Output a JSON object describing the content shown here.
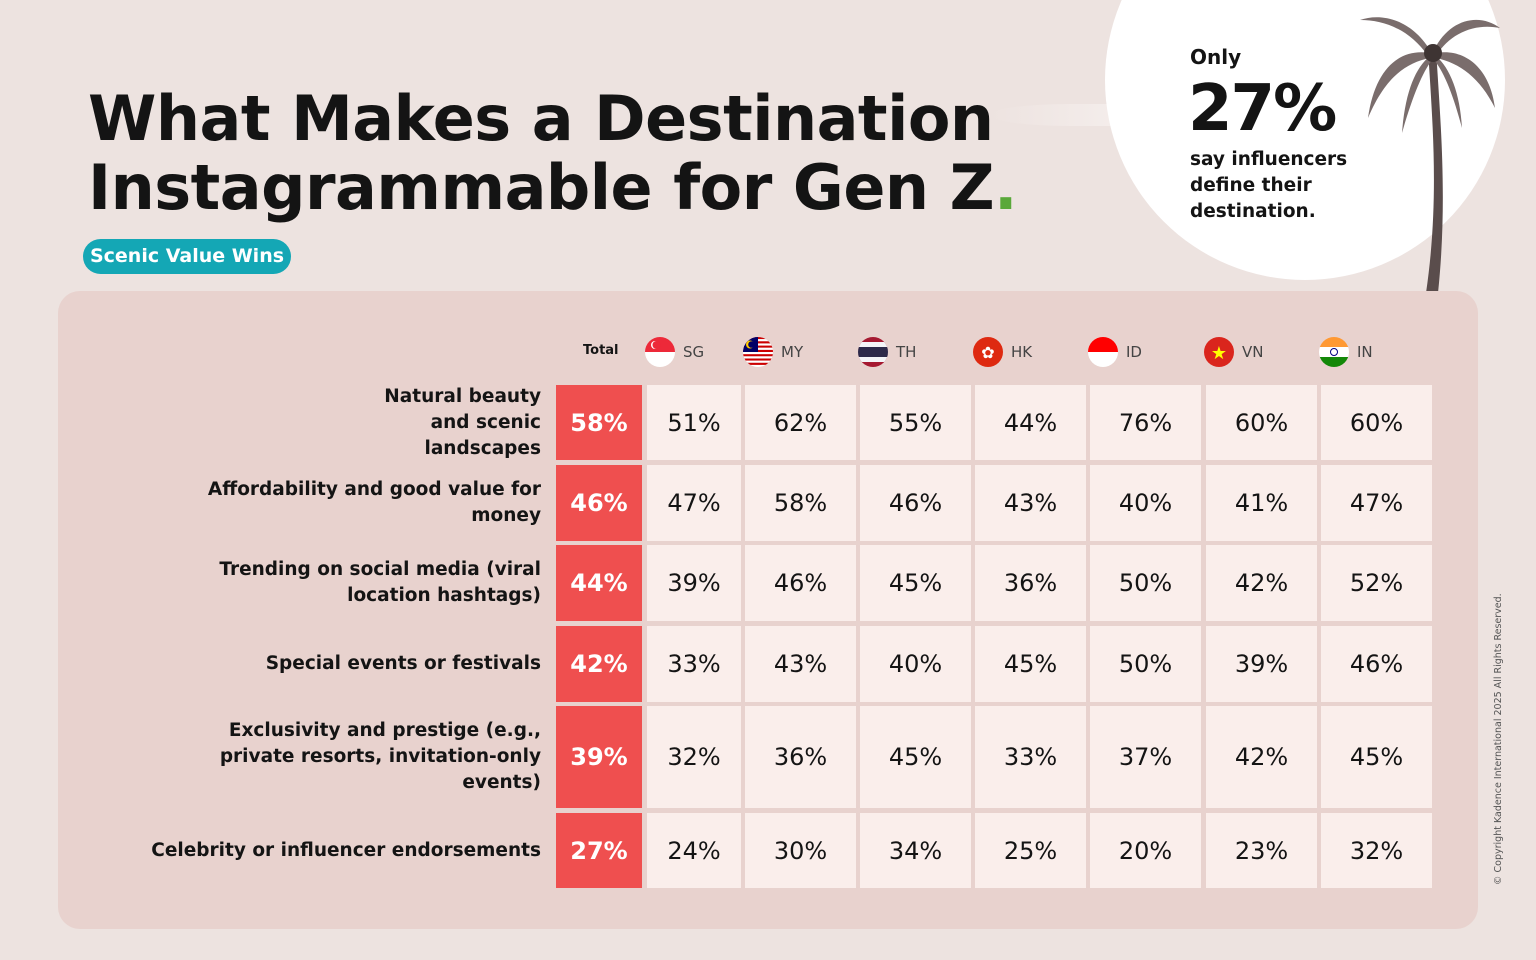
{
  "title": {
    "line1": "What Makes a Destination",
    "line2": "Instagrammable for Gen Z",
    "dot": "."
  },
  "badge": "Scenic Value Wins",
  "callout": {
    "prefix": "Only",
    "value": "27%",
    "text": "say influencers define their destination."
  },
  "copyright": "© Copyright Kadence International 2025 All Rights Reserved.",
  "colors": {
    "total": "#ef4f4f",
    "badge": "#14a7b5",
    "accent_dot": "#5aa83a",
    "panel": "#e8d2ce",
    "cell": "#faeeeb"
  },
  "chart_data": {
    "type": "table",
    "columns": [
      "Total",
      "SG",
      "MY",
      "TH",
      "HK",
      "ID",
      "VN",
      "IN"
    ],
    "flags": [
      "",
      "singapore-flag-icon",
      "malaysia-flag-icon",
      "thailand-flag-icon",
      "hong-kong-flag-icon",
      "indonesia-flag-icon",
      "vietnam-flag-icon",
      "india-flag-icon"
    ],
    "rows": [
      {
        "label": "Natural beauty and scenic landscapes",
        "values": [
          "58%",
          "51%",
          "62%",
          "55%",
          "44%",
          "76%",
          "60%",
          "60%"
        ]
      },
      {
        "label": "Affordability and good value for money",
        "values": [
          "46%",
          "47%",
          "58%",
          "46%",
          "43%",
          "40%",
          "41%",
          "47%"
        ]
      },
      {
        "label": "Trending on social media (viral location hashtags)",
        "values": [
          "44%",
          "39%",
          "46%",
          "45%",
          "36%",
          "50%",
          "42%",
          "52%"
        ]
      },
      {
        "label": "Special events or festivals",
        "values": [
          "42%",
          "33%",
          "43%",
          "40%",
          "45%",
          "50%",
          "39%",
          "46%"
        ]
      },
      {
        "label": "Exclusivity and prestige (e.g., private resorts, invitation-only events)",
        "values": [
          "39%",
          "32%",
          "36%",
          "45%",
          "33%",
          "37%",
          "42%",
          "45%"
        ]
      },
      {
        "label": "Celebrity or influencer endorsements",
        "values": [
          "27%",
          "24%",
          "30%",
          "34%",
          "25%",
          "20%",
          "23%",
          "32%"
        ]
      }
    ]
  }
}
